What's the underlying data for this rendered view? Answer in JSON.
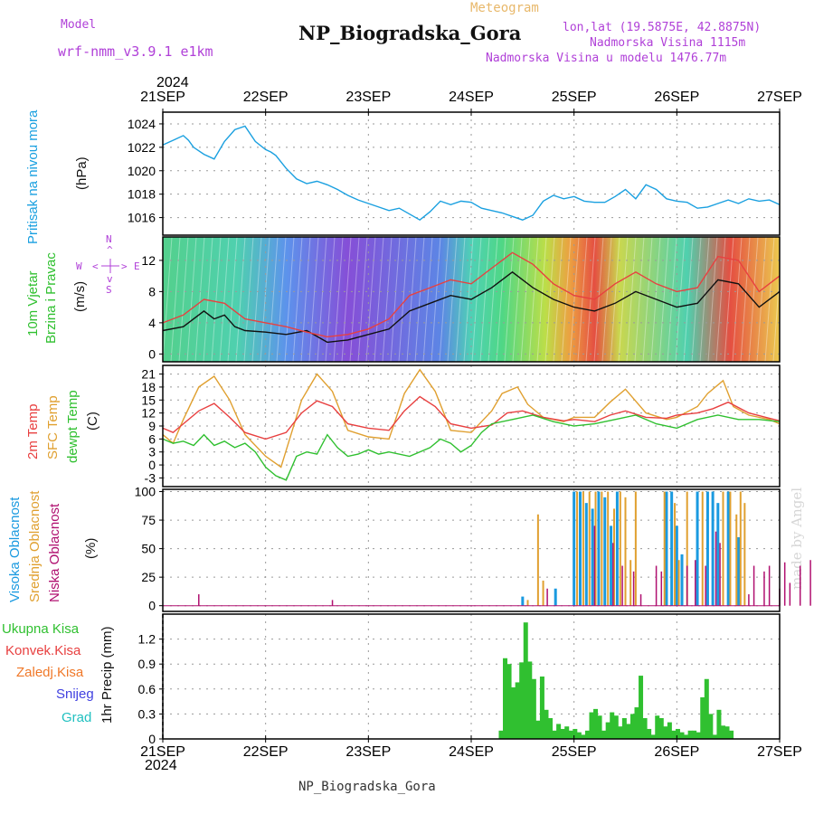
{
  "header": {
    "model_label": "Model",
    "model_name": "wrf-nmm_v3.9.1  e1km",
    "title": "NP_Biogradska_Gora",
    "meteogram": "Meteogram",
    "lonlat": "lon,lat (19.5875E, 42.8875N)",
    "altitude": "Nadmorska Visina 1115m",
    "model_altitude": "Nadmorska Visina u modelu 1476.77m",
    "year_top": "2024",
    "year_bottom": "2024",
    "footer": "NP_Biogradska_Gora",
    "watermark": "made by Angel"
  },
  "colors": {
    "pressure": "#1aa0e0",
    "temp2m": "#e84040",
    "sfc": "#e0a030",
    "dewpt": "#30c030",
    "high_cloud": "#1a9ae0",
    "mid_cloud": "#e0a030",
    "low_cloud": "#b01070",
    "precip_total": "#30c030",
    "precip_conv": "#e84040",
    "wind_speed": "#111111",
    "wind_gust": "#e84040"
  },
  "chart_data": {
    "x_axis": {
      "ticks": [
        "21SEP",
        "22SEP",
        "23SEP",
        "24SEP",
        "25SEP",
        "26SEP",
        "27SEP"
      ],
      "range_days": [
        0,
        6
      ]
    },
    "panels": [
      {
        "id": "pressure",
        "type": "line",
        "labels": [
          "Pritisak na nivou mora"
        ],
        "unit": "(hPa)",
        "ylim": [
          1014.5,
          1025
        ],
        "yticks": [
          "1016",
          "1018",
          "1020",
          "1022",
          "1024"
        ],
        "series": [
          {
            "x": [
              0,
              0.1,
              0.2,
              0.25,
              0.3,
              0.4,
              0.5,
              0.6,
              0.7,
              0.8,
              0.9,
              1.0,
              1.05,
              1.1,
              1.2,
              1.3,
              1.4,
              1.5,
              1.6,
              1.7,
              1.8,
              1.9,
              2.0,
              2.1,
              2.2,
              2.3,
              2.4,
              2.5,
              2.6,
              2.7,
              2.8,
              2.9,
              3.0,
              3.1,
              3.2,
              3.3,
              3.4,
              3.5,
              3.6,
              3.7,
              3.8,
              3.9,
              4.0,
              4.1,
              4.2,
              4.3,
              4.4,
              4.5,
              4.6,
              4.7,
              4.8,
              4.9,
              5.0,
              5.1,
              5.2,
              5.3,
              5.4,
              5.5,
              5.6,
              5.7,
              5.8,
              5.9,
              6.0
            ],
            "y": [
              1022.2,
              1022.6,
              1023.0,
              1022.6,
              1022.0,
              1021.4,
              1021.0,
              1022.5,
              1023.5,
              1023.8,
              1022.5,
              1021.8,
              1021.6,
              1021.3,
              1020.2,
              1019.3,
              1018.9,
              1019.1,
              1018.8,
              1018.4,
              1017.9,
              1017.5,
              1017.2,
              1016.9,
              1016.6,
              1016.8,
              1016.3,
              1015.8,
              1016.5,
              1017.4,
              1017.1,
              1017.4,
              1017.3,
              1016.8,
              1016.6,
              1016.4,
              1016.1,
              1015.8,
              1016.2,
              1017.4,
              1017.9,
              1017.6,
              1017.8,
              1017.4,
              1017.3,
              1017.3,
              1017.8,
              1018.4,
              1017.6,
              1018.8,
              1018.4,
              1017.6,
              1017.4,
              1017.3,
              1016.8,
              1016.9,
              1017.2,
              1017.5,
              1017.2,
              1017.6,
              1017.4,
              1017.5,
              1017.1
            ]
          }
        ]
      },
      {
        "id": "wind",
        "type": "line",
        "labels": [
          "10m Vjetar",
          "Brzina i Pravac"
        ],
        "unit": "(m/s)",
        "compass": [
          "N",
          "S",
          "W",
          "E",
          "<",
          ">",
          "^",
          "v"
        ],
        "ylim": [
          -1,
          15
        ],
        "yticks": [
          "0",
          "4",
          "8",
          "12"
        ],
        "series": [
          {
            "name": "speed",
            "x": [
              0,
              0.2,
              0.4,
              0.5,
              0.6,
              0.7,
              0.8,
              1.0,
              1.2,
              1.4,
              1.6,
              1.8,
              2.0,
              2.2,
              2.4,
              2.6,
              2.8,
              3.0,
              3.2,
              3.4,
              3.6,
              3.8,
              4.0,
              4.2,
              4.4,
              4.6,
              4.8,
              5.0,
              5.2,
              5.4,
              5.6,
              5.8,
              6.0
            ],
            "y": [
              3.0,
              3.5,
              5.5,
              4.5,
              5.0,
              3.5,
              3.0,
              2.8,
              2.5,
              3.0,
              1.5,
              1.8,
              2.5,
              3.2,
              5.5,
              6.5,
              7.5,
              7.0,
              8.5,
              10.5,
              8.5,
              7.0,
              6.0,
              5.5,
              6.5,
              8.0,
              7.0,
              6.0,
              6.5,
              9.5,
              9.0,
              6.0,
              8.0
            ]
          },
          {
            "name": "gust",
            "x": [
              0,
              0.2,
              0.4,
              0.6,
              0.8,
              1.0,
              1.2,
              1.4,
              1.6,
              1.8,
              2.0,
              2.2,
              2.4,
              2.6,
              2.8,
              3.0,
              3.2,
              3.4,
              3.6,
              3.8,
              4.0,
              4.2,
              4.4,
              4.6,
              4.8,
              5.0,
              5.2,
              5.4,
              5.6,
              5.8,
              6.0
            ],
            "y": [
              4.0,
              5.0,
              7.0,
              6.5,
              4.5,
              4.0,
              3.5,
              2.8,
              2.2,
              2.5,
              3.2,
              4.5,
              7.5,
              8.5,
              9.5,
              9.0,
              11.0,
              13.0,
              11.5,
              9.0,
              7.5,
              7.0,
              9.0,
              10.5,
              9.0,
              8.0,
              8.5,
              12.5,
              12.0,
              8.0,
              10.0
            ]
          }
        ]
      },
      {
        "id": "temperature",
        "type": "line",
        "labels": [
          "2m Temp",
          "SFC Temp",
          "dewpt Temp"
        ],
        "unit": "(C)",
        "ylim": [
          -5,
          23
        ],
        "yticks": [
          "-3",
          "0",
          "3",
          "6",
          "9",
          "12",
          "15",
          "18",
          "21"
        ],
        "series": [
          {
            "name": "2m Temp",
            "x": [
              0,
              0.1,
              0.2,
              0.35,
              0.5,
              0.65,
              0.8,
              1.0,
              1.2,
              1.35,
              1.5,
              1.65,
              1.8,
              2.0,
              2.2,
              2.35,
              2.5,
              2.65,
              2.8,
              3.0,
              3.2,
              3.35,
              3.5,
              3.7,
              3.9,
              4.0,
              4.2,
              4.35,
              4.5,
              4.7,
              4.9,
              5.0,
              5.2,
              5.35,
              5.5,
              5.7,
              5.9,
              6.0
            ],
            "y": [
              8.5,
              7.5,
              9.5,
              12.5,
              14.2,
              11.0,
              7.5,
              6.0,
              7.5,
              12.0,
              14.8,
              13.5,
              9.5,
              8.5,
              8.0,
              12.5,
              15.8,
              13.5,
              9.5,
              8.5,
              9.2,
              12.0,
              12.5,
              11.0,
              10.2,
              10.5,
              10.0,
              11.5,
              12.5,
              11.0,
              10.8,
              11.5,
              12.0,
              13.0,
              14.5,
              12.0,
              10.8,
              10.2
            ]
          },
          {
            "name": "SFC Temp",
            "x": [
              0,
              0.1,
              0.2,
              0.35,
              0.5,
              0.65,
              0.8,
              1.0,
              1.15,
              1.35,
              1.5,
              1.65,
              1.8,
              2.0,
              2.2,
              2.35,
              2.5,
              2.65,
              2.8,
              3.0,
              3.2,
              3.3,
              3.45,
              3.55,
              3.7,
              3.9,
              4.0,
              4.2,
              4.35,
              4.5,
              4.7,
              4.9,
              5.0,
              5.2,
              5.3,
              5.45,
              5.55,
              5.7,
              5.9,
              6.0
            ],
            "y": [
              7.0,
              5.0,
              10.5,
              18.0,
              20.5,
              15.0,
              7.0,
              2.0,
              -0.5,
              15.0,
              21.0,
              17.0,
              8.0,
              6.5,
              6.0,
              16.5,
              22.0,
              17.0,
              8.0,
              7.5,
              12.5,
              16.5,
              18.0,
              14.0,
              11.0,
              10.0,
              11.0,
              11.0,
              14.5,
              17.5,
              12.0,
              10.5,
              11.0,
              13.5,
              16.5,
              19.5,
              13.5,
              11.5,
              10.5,
              9.5
            ]
          },
          {
            "name": "dewpt Temp",
            "x": [
              0,
              0.1,
              0.2,
              0.3,
              0.4,
              0.5,
              0.6,
              0.7,
              0.8,
              0.9,
              1.0,
              1.1,
              1.2,
              1.3,
              1.4,
              1.5,
              1.6,
              1.7,
              1.8,
              1.9,
              2.0,
              2.1,
              2.2,
              2.4,
              2.6,
              2.7,
              2.8,
              2.9,
              3.0,
              3.1,
              3.2,
              3.4,
              3.6,
              3.8,
              4.0,
              4.2,
              4.4,
              4.6,
              4.8,
              5.0,
              5.2,
              5.4,
              5.6,
              5.8,
              6.0
            ],
            "y": [
              6.0,
              5.0,
              5.5,
              4.5,
              7.0,
              4.5,
              5.5,
              4.0,
              5.0,
              3.0,
              -0.5,
              -2.5,
              -3.5,
              2.0,
              3.0,
              2.5,
              7.0,
              4.0,
              2.0,
              2.5,
              3.5,
              2.5,
              3.0,
              2.0,
              4.0,
              6.0,
              5.0,
              3.0,
              4.5,
              7.5,
              9.5,
              10.5,
              11.5,
              10.0,
              9.0,
              9.5,
              10.5,
              11.5,
              9.5,
              8.5,
              10.5,
              11.5,
              10.5,
              10.5,
              10.0
            ]
          }
        ]
      },
      {
        "id": "cloud",
        "type": "bar",
        "labels": [
          "Visoka Oblacnost",
          "Srednja Oblacnost",
          "Niska Oblacnost"
        ],
        "unit": "(%)",
        "ylim": [
          -5,
          102
        ],
        "yticks": [
          "0",
          "25",
          "50",
          "75",
          "100"
        ],
        "series": [
          {
            "name": "Visoka Oblacnost",
            "x": [
              3.5,
              3.82,
              4.0,
              4.06,
              4.12,
              4.18,
              4.24,
              4.3,
              4.36,
              4.42,
              4.9,
              4.95,
              5.0,
              5.05,
              5.2,
              5.3,
              5.35,
              5.4,
              5.5,
              5.6
            ],
            "y": [
              8,
              15,
              100,
              100,
              90,
              85,
              100,
              95,
              70,
              100,
              100,
              100,
              70,
              45,
              100,
              100,
              100,
              90,
              100,
              60
            ]
          },
          {
            "name": "Srednja Oblacnost",
            "x": [
              3.55,
              3.65,
              3.7,
              4.03,
              4.09,
              4.15,
              4.21,
              4.27,
              4.33,
              4.39,
              4.45,
              4.5,
              4.55,
              4.6,
              4.88,
              4.98,
              5.02,
              5.1,
              5.25,
              5.45,
              5.52,
              5.58,
              5.62,
              5.66
            ],
            "y": [
              5,
              80,
              22,
              100,
              100,
              100,
              100,
              100,
              100,
              85,
              100,
              95,
              40,
              100,
              100,
              90,
              40,
              100,
              100,
              100,
              100,
              80,
              100,
              90
            ]
          },
          {
            "name": "Niska Oblacnost",
            "x": [
              0.35,
              1.65,
              3.74,
              4.2,
              4.38,
              4.47,
              4.58,
              4.65,
              4.8,
              4.85,
              5.1,
              5.18,
              5.28,
              5.38,
              5.42,
              5.7,
              5.75,
              5.85,
              5.9,
              6.0,
              6.05,
              6.1,
              6.2,
              6.3,
              6.35,
              6.4,
              6.55,
              6.6,
              6.7,
              6.75
            ],
            "y": [
              10,
              5,
              15,
              70,
              55,
              35,
              30,
              10,
              35,
              30,
              35,
              40,
              35,
              65,
              55,
              10,
              35,
              30,
              35,
              15,
              38,
              20,
              35,
              40,
              8,
              35,
              30,
              20,
              35,
              38
            ]
          }
        ]
      },
      {
        "id": "precip",
        "type": "bar",
        "labels": [
          "Ukupna Kisa",
          "Konvek.Kisa",
          "Zaledj.Kisa",
          "Snijeg",
          "Grad"
        ],
        "unit": "1hr Precip (mm)",
        "ylim": [
          0,
          1.5
        ],
        "yticks": [
          "0",
          "0.3",
          "0.6",
          "0.9",
          "1.2"
        ],
        "series": [
          {
            "name": "Ukupna Kisa",
            "x": [
              3.29,
              3.33,
              3.37,
              3.41,
              3.45,
              3.49,
              3.53,
              3.57,
              3.61,
              3.65,
              3.69,
              3.73,
              3.77,
              3.81,
              3.85,
              3.89,
              3.93,
              3.97,
              4.01,
              4.05,
              4.09,
              4.13,
              4.17,
              4.21,
              4.25,
              4.29,
              4.33,
              4.37,
              4.41,
              4.45,
              4.49,
              4.53,
              4.57,
              4.61,
              4.65,
              4.69,
              4.73,
              4.77,
              4.81,
              4.85,
              4.89,
              4.93,
              4.97,
              5.01,
              5.05,
              5.09,
              5.13,
              5.17,
              5.21,
              5.25,
              5.29,
              5.33,
              5.37,
              5.41,
              5.45,
              5.49,
              5.53,
              5.57,
              5.61,
              5.65,
              5.69,
              5.73,
              5.77,
              5.81,
              5.85,
              5.89
            ],
            "y": [
              0.1,
              0.97,
              0.9,
              0.62,
              0.68,
              0.92,
              1.4,
              0.93,
              0.72,
              0.22,
              0.75,
              0.35,
              0.25,
              0.1,
              0.18,
              0.12,
              0.15,
              0.1,
              0.12,
              0.08,
              0.05,
              0.1,
              0.32,
              0.36,
              0.28,
              0.1,
              0.2,
              0.32,
              0.28,
              0.15,
              0.25,
              0.18,
              0.3,
              0.38,
              0.76,
              0.25,
              0.12,
              0.05,
              0.28,
              0.25,
              0.15,
              0.2,
              0.1,
              0.12,
              0.08,
              0.05,
              0.1,
              0.1,
              0.08,
              0.5,
              0.72,
              0.3,
              0.05,
              0.35,
              0.16,
              0.15,
              0.1,
              0.0,
              0.0,
              0.0,
              0.0,
              0.0,
              0.0,
              0.0,
              0.0,
              0.0
            ]
          }
        ]
      }
    ]
  }
}
